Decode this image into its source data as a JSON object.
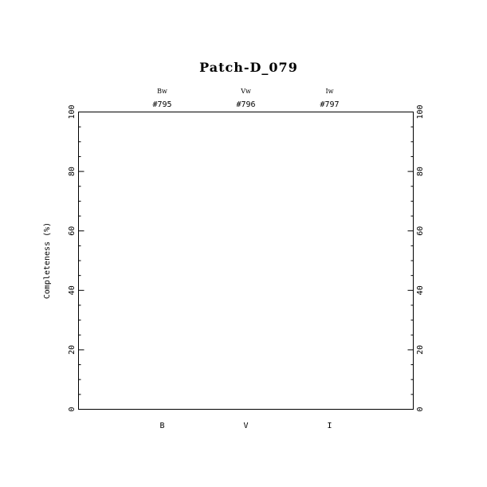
{
  "chart_data": {
    "type": "scatter",
    "title": "Patch-D_079",
    "xlabel": "",
    "ylabel": "Completeness (%)",
    "ylim": [
      0,
      100
    ],
    "yticks": [
      "0",
      "20",
      "40",
      "60",
      "80",
      "100"
    ],
    "categories": [
      "B",
      "V",
      "I"
    ],
    "top_labels": [
      {
        "filter": "Bw",
        "id": "#795"
      },
      {
        "filter": "Vw",
        "id": "#796"
      },
      {
        "filter": "Iw",
        "id": "#797"
      }
    ],
    "series": [],
    "grid": false,
    "legend": "none"
  }
}
